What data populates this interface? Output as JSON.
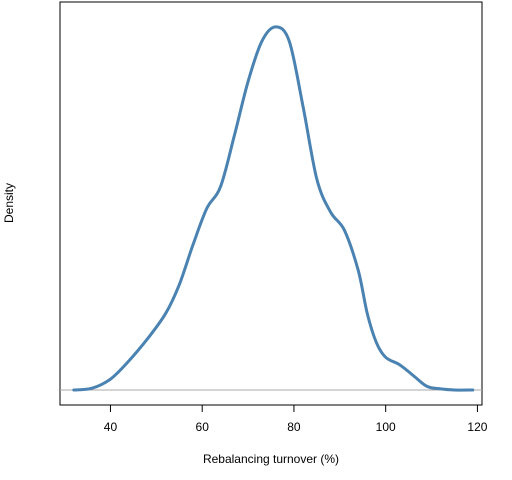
{
  "chart_data": {
    "type": "line",
    "title": "",
    "xlabel": "Rebalancing turnover (%)",
    "ylabel": "Density",
    "xlim": [
      29,
      121
    ],
    "ylim": [
      0,
      1.03
    ],
    "x_ticks": [
      40,
      60,
      80,
      100,
      120
    ],
    "y_ticks": [],
    "grid": false,
    "legend": "none",
    "zero_line": true,
    "colors": {
      "line": "#4a82b2",
      "baseline": "#aaaaaa",
      "frame": "#000000"
    },
    "series": [
      {
        "x": [
          32,
          36,
          40,
          44,
          48,
          52,
          55,
          58,
          61,
          64,
          67,
          70,
          73,
          76,
          79,
          82,
          85,
          88,
          91,
          94,
          96,
          98,
          100,
          103,
          106,
          109,
          112,
          115,
          119
        ],
        "y": [
          0.0,
          0.005,
          0.03,
          0.08,
          0.14,
          0.21,
          0.29,
          0.4,
          0.5,
          0.56,
          0.7,
          0.85,
          0.96,
          1.0,
          0.96,
          0.78,
          0.58,
          0.49,
          0.44,
          0.33,
          0.21,
          0.13,
          0.09,
          0.07,
          0.04,
          0.01,
          0.003,
          0.0,
          0.0
        ]
      }
    ]
  }
}
